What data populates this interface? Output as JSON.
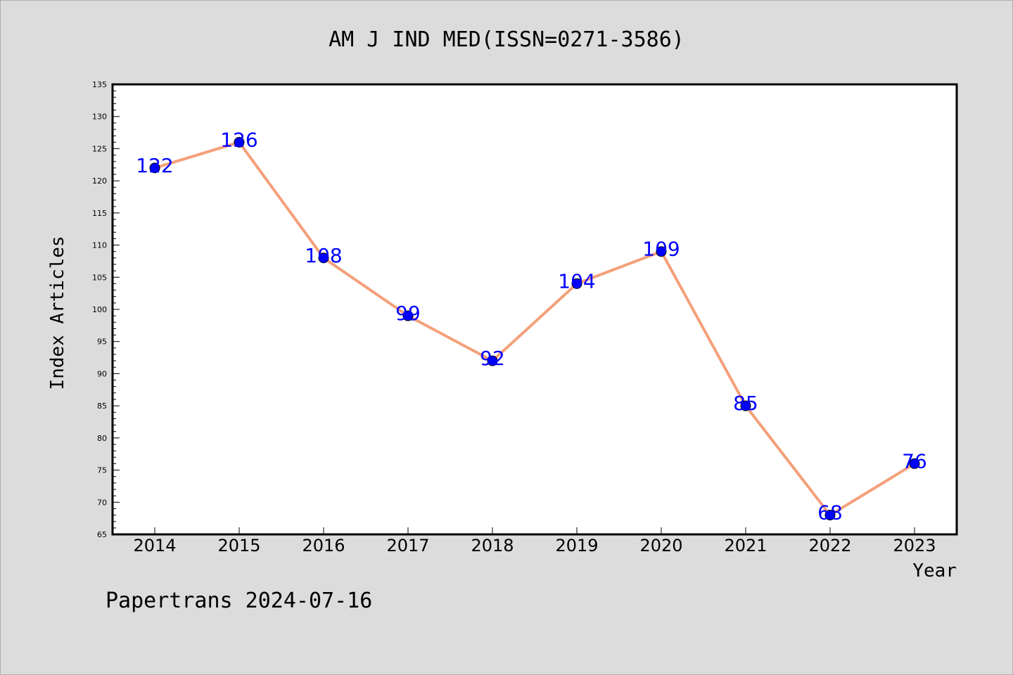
{
  "chart_data": {
    "type": "line",
    "title": "AM J IND MED(ISSN=0271-3586)",
    "xlabel": "Year",
    "ylabel": "Index Articles",
    "x": [
      "2014",
      "2015",
      "2016",
      "2017",
      "2018",
      "2019",
      "2020",
      "2021",
      "2022",
      "2023"
    ],
    "series": [
      {
        "values": [
          122,
          126,
          108,
          99,
          92,
          104,
          109,
          85,
          68,
          76
        ]
      }
    ],
    "yticks": [
      65,
      70,
      75,
      80,
      85,
      90,
      95,
      100,
      105,
      110,
      115,
      120,
      125,
      130,
      135
    ],
    "ylim": [
      65,
      135
    ],
    "grid": false,
    "line_color": "#f4a07a",
    "marker_color": "#0000ff",
    "label_color": "#0000ff"
  },
  "footer": {
    "text": "Papertrans 2024-07-16"
  }
}
